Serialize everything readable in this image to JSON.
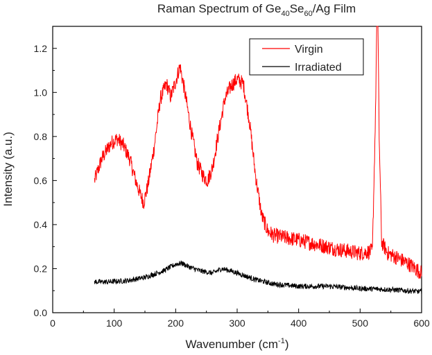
{
  "chart_data": {
    "type": "line",
    "title_parts": [
      "Raman Spectrum of Ge",
      "40",
      "Se",
      "60",
      "/Ag Film"
    ],
    "xlabel_parts": [
      "Wavenumber (cm",
      "-1",
      ")"
    ],
    "ylabel": "Intensity (a.u.)",
    "xlim": [
      0,
      600
    ],
    "ylim": [
      0,
      1.3
    ],
    "xticks": [
      0,
      100,
      200,
      300,
      400,
      500,
      600
    ],
    "yticks": [
      0.0,
      0.2,
      0.4,
      0.6,
      0.8,
      1.0,
      1.2
    ],
    "ytick_labels": [
      "0.0",
      "0.2",
      "0.4",
      "0.6",
      "0.8",
      "1.0",
      "1.2"
    ],
    "grid": false,
    "legend_position": "top-right",
    "series": [
      {
        "name": "Virgin",
        "color": "#ff0000",
        "x": [
          68,
          80,
          95,
          105,
          115,
          125,
          135,
          142,
          148,
          155,
          165,
          175,
          185,
          192,
          200,
          207,
          215,
          225,
          235,
          245,
          252,
          260,
          270,
          280,
          290,
          300,
          310,
          320,
          330,
          340,
          350,
          360,
          380,
          400,
          430,
          460,
          500,
          520,
          525,
          527,
          529,
          531,
          535,
          545,
          560,
          580,
          600
        ],
        "y": [
          0.6,
          0.7,
          0.77,
          0.79,
          0.76,
          0.7,
          0.6,
          0.54,
          0.5,
          0.58,
          0.75,
          0.97,
          1.04,
          0.98,
          1.05,
          1.12,
          1.0,
          0.83,
          0.68,
          0.62,
          0.6,
          0.66,
          0.82,
          0.97,
          1.03,
          1.06,
          1.04,
          0.87,
          0.62,
          0.44,
          0.37,
          0.35,
          0.34,
          0.33,
          0.31,
          0.29,
          0.27,
          0.28,
          0.9,
          1.3,
          1.3,
          0.8,
          0.32,
          0.27,
          0.25,
          0.22,
          0.18
        ]
      },
      {
        "name": "Irradiated",
        "color": "#000000",
        "x": [
          68,
          90,
          120,
          150,
          180,
          200,
          210,
          220,
          240,
          260,
          275,
          290,
          310,
          330,
          360,
          400,
          450,
          500,
          550,
          600
        ],
        "y": [
          0.14,
          0.14,
          0.145,
          0.16,
          0.19,
          0.22,
          0.225,
          0.21,
          0.19,
          0.18,
          0.2,
          0.19,
          0.17,
          0.15,
          0.13,
          0.12,
          0.12,
          0.11,
          0.105,
          0.095
        ]
      }
    ]
  }
}
